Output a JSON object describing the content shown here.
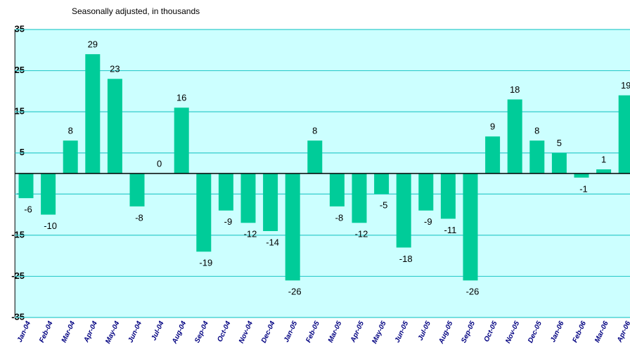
{
  "chart_data": {
    "type": "bar",
    "subtitle": "Seasonally adjusted, in thousands",
    "categories": [
      "Jan-04",
      "Feb-04",
      "Mar-04",
      "Apr-04",
      "May-04",
      "Jun-04",
      "Jul-04",
      "Aug-04",
      "Sep-04",
      "Oct-04",
      "Nov-04",
      "Dec-04",
      "Jan-05",
      "Feb-05",
      "Mar-05",
      "Apr-05",
      "May-05",
      "Jun-05",
      "Jul-05",
      "Aug-05",
      "Sep-05",
      "Oct-05",
      "Nov-05",
      "Dec-05",
      "Jan-06",
      "Feb-06",
      "Mar-06",
      "Apr-06"
    ],
    "values": [
      -6,
      -10,
      8,
      29,
      23,
      -8,
      0,
      16,
      -19,
      -9,
      -12,
      -14,
      -26,
      8,
      -8,
      -12,
      -5,
      -18,
      -9,
      -11,
      -26,
      9,
      18,
      8,
      5,
      -1,
      1,
      19
    ],
    "color": "#00cc99",
    "background": "#ccffff",
    "ylim": [
      -35,
      35
    ],
    "yticks": [
      35,
      25,
      15,
      5,
      -5,
      -15,
      -25,
      -35
    ],
    "grid": true
  }
}
